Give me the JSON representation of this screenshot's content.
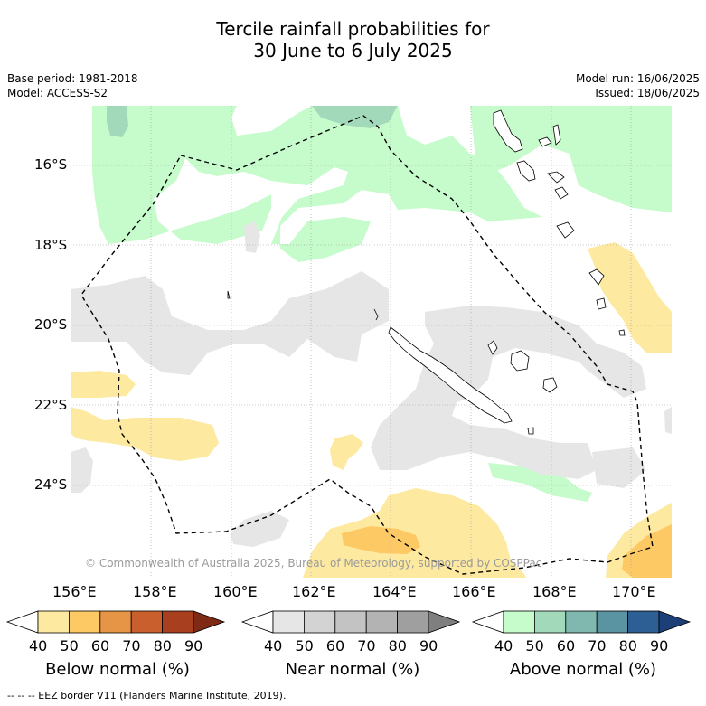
{
  "title": {
    "line1": "Tercile rainfall probabilities for",
    "line2": "30 June to 6 July 2025"
  },
  "meta": {
    "base_period": "Base period: 1981-2018",
    "model": "Model: ACCESS-S2",
    "model_run": "Model run: 16/06/2025",
    "issued": "Issued: 18/06/2025"
  },
  "axes": {
    "lon_labels": [
      "156°E",
      "158°E",
      "160°E",
      "162°E",
      "164°E",
      "166°E",
      "168°E",
      "170°E"
    ],
    "lat_labels": [
      "16°S",
      "18°S",
      "20°S",
      "22°S",
      "24°S"
    ]
  },
  "copyright": "© Commonwealth of Australia 2025, Bureau of Meteorology, supported by COSPPac",
  "colorbars": [
    {
      "label": "Below normal (%)",
      "ticks": [
        "40",
        "50",
        "60",
        "70",
        "80",
        "90"
      ],
      "colors": [
        "#ffffff",
        "#fee9a0",
        "#fdc964",
        "#e69445",
        "#c95f2c",
        "#a83f1f",
        "#7f2a14"
      ]
    },
    {
      "label": "Near normal (%)",
      "ticks": [
        "40",
        "50",
        "60",
        "70",
        "80",
        "90"
      ],
      "colors": [
        "#ffffff",
        "#e6e6e6",
        "#d3d3d3",
        "#c3c3c3",
        "#b3b3b3",
        "#9f9f9f",
        "#7f7f7f"
      ]
    },
    {
      "label": "Above normal (%)",
      "ticks": [
        "40",
        "50",
        "60",
        "70",
        "80",
        "90"
      ],
      "colors": [
        "#ffffff",
        "#c6fbcb",
        "#a3d9bb",
        "#80b8b0",
        "#5a93a2",
        "#2d5f94",
        "#1c3f78"
      ]
    }
  ],
  "footer": "--  --  -- EEZ border V11 (Flanders Marine Institute, 2019).",
  "map_colors": {
    "below_50": "#fee9a0",
    "below_60": "#fdc964",
    "near_50": "#e6e6e6",
    "above_50": "#c6fbcb",
    "above_60": "#a3d9bb"
  }
}
